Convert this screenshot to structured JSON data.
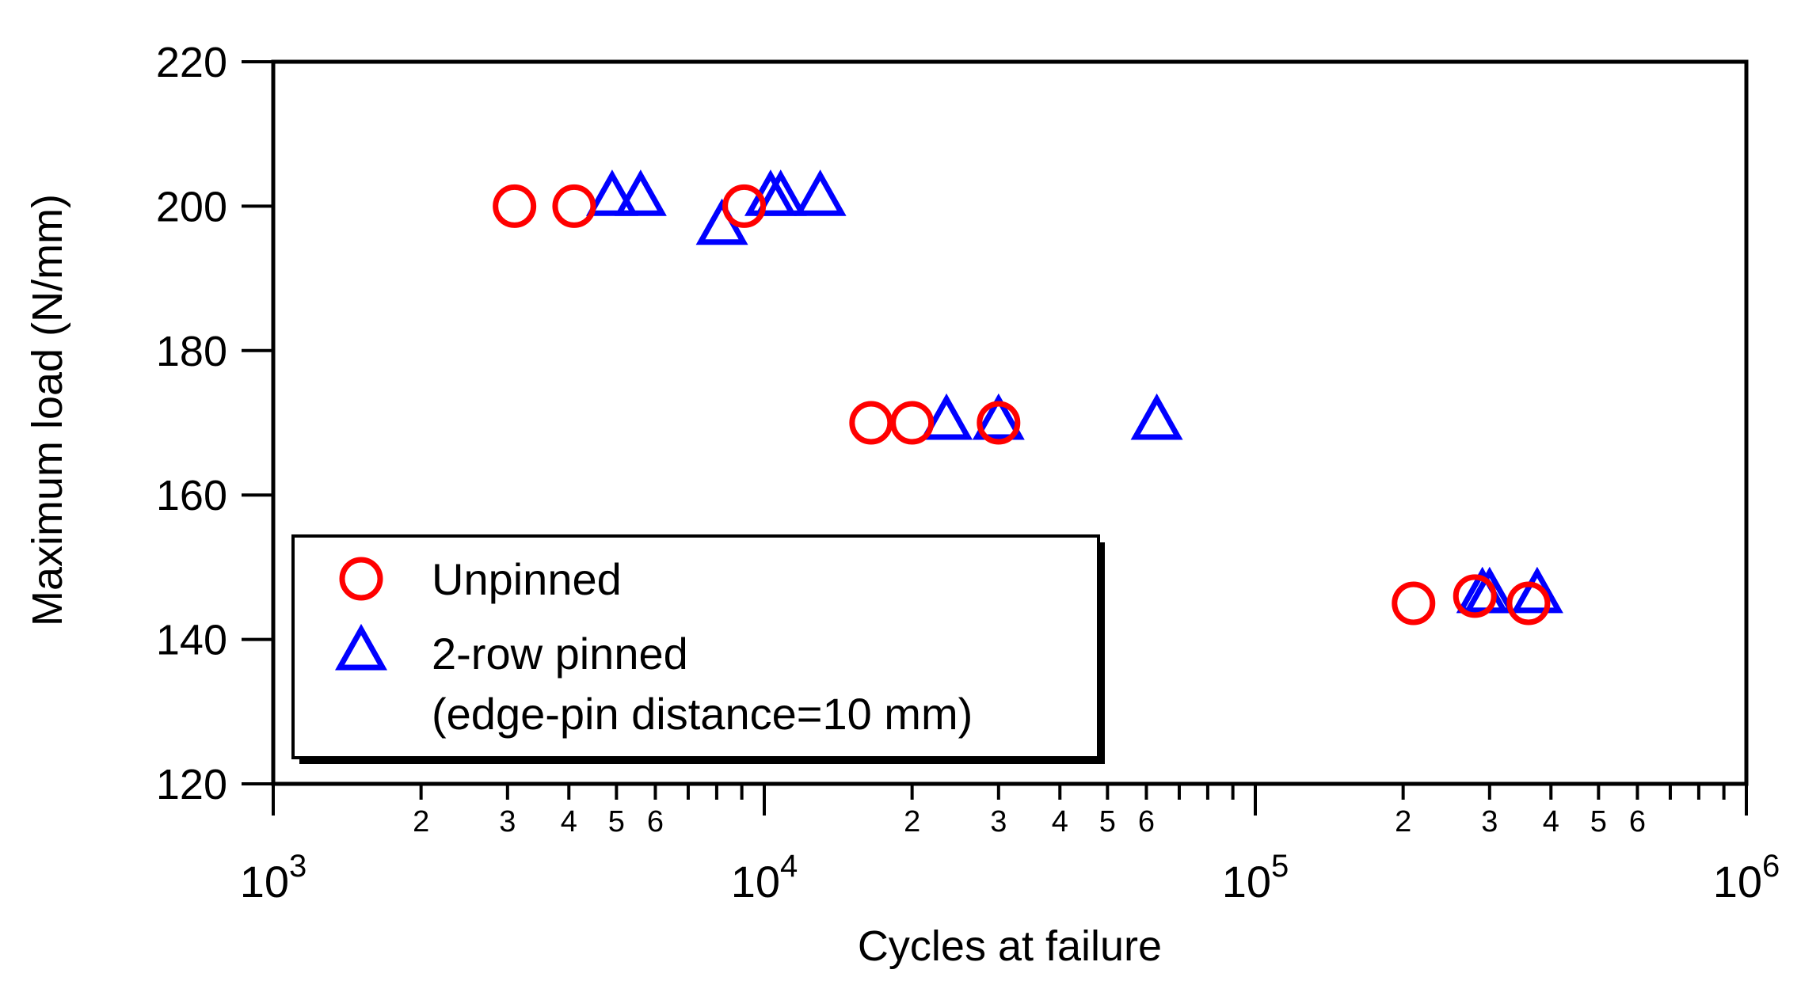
{
  "chart_data": {
    "type": "scatter",
    "title": "",
    "xlabel": "Cycles at failure",
    "ylabel": "Maximum load (N/mm)",
    "xscale": "log",
    "xlim": [
      1000,
      1000000
    ],
    "ylim": [
      120,
      220
    ],
    "y_ticks": [
      120,
      140,
      160,
      180,
      200,
      220
    ],
    "x_major_ticks": [
      {
        "value": 1000,
        "base": "10",
        "exp": "3"
      },
      {
        "value": 10000,
        "base": "10",
        "exp": "4"
      },
      {
        "value": 100000,
        "base": "10",
        "exp": "5"
      },
      {
        "value": 1000000,
        "base": "10",
        "exp": "6"
      }
    ],
    "x_minor_labels": [
      "2",
      "3",
      "4",
      "5",
      "6"
    ],
    "grid": false,
    "legend_position": "bottom-left",
    "series": [
      {
        "name": "Unpinned",
        "subtitle": "",
        "marker": "circle",
        "color": "#ff0000",
        "points": [
          {
            "x": 3100,
            "y": 200
          },
          {
            "x": 4100,
            "y": 200
          },
          {
            "x": 9100,
            "y": 200
          },
          {
            "x": 16500,
            "y": 170
          },
          {
            "x": 20000,
            "y": 170
          },
          {
            "x": 30000,
            "y": 170
          },
          {
            "x": 210000,
            "y": 145
          },
          {
            "x": 280000,
            "y": 146
          },
          {
            "x": 360000,
            "y": 145
          }
        ]
      },
      {
        "name": "2-row pinned",
        "subtitle": "(edge-pin distance=10 mm)",
        "marker": "triangle",
        "color": "#0000ff",
        "points": [
          {
            "x": 4900,
            "y": 201
          },
          {
            "x": 5600,
            "y": 201
          },
          {
            "x": 8200,
            "y": 197
          },
          {
            "x": 10300,
            "y": 201
          },
          {
            "x": 10800,
            "y": 201
          },
          {
            "x": 13000,
            "y": 201
          },
          {
            "x": 23500,
            "y": 170
          },
          {
            "x": 30000,
            "y": 170
          },
          {
            "x": 63000,
            "y": 170
          },
          {
            "x": 290000,
            "y": 146
          },
          {
            "x": 300000,
            "y": 146
          },
          {
            "x": 375000,
            "y": 146
          }
        ]
      }
    ]
  }
}
